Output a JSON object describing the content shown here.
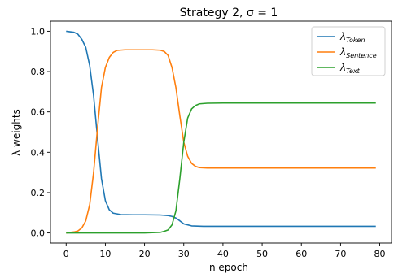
{
  "chart_data": {
    "type": "line",
    "title": "Strategy 2, σ = 1",
    "xlabel": "n epoch",
    "ylabel": "λ weights",
    "xlim": [
      -4,
      83
    ],
    "ylim": [
      -0.05,
      1.05
    ],
    "xticks": [
      0,
      10,
      20,
      30,
      40,
      50,
      60,
      70,
      80
    ],
    "yticks": [
      0.0,
      0.2,
      0.4,
      0.6,
      0.8,
      1.0
    ],
    "yticklabels": [
      "0.0",
      "0.2",
      "0.4",
      "0.6",
      "0.8",
      "1.0"
    ],
    "grid": false,
    "legend_position": "top-right",
    "series": [
      {
        "name_symbol": "λ",
        "name_sub": "Token",
        "color": "#1f77b4",
        "x": [
          0,
          2,
          3,
          4,
          5,
          6,
          7,
          8,
          9,
          10,
          11,
          12,
          14,
          17,
          20,
          24,
          26,
          27,
          28,
          29,
          30,
          32,
          35,
          40,
          79
        ],
        "y": [
          1.0,
          0.995,
          0.985,
          0.96,
          0.92,
          0.83,
          0.68,
          0.47,
          0.27,
          0.16,
          0.115,
          0.098,
          0.091,
          0.09,
          0.09,
          0.089,
          0.086,
          0.082,
          0.074,
          0.06,
          0.045,
          0.035,
          0.033,
          0.033,
          0.033
        ]
      },
      {
        "name_symbol": "λ",
        "name_sub": "Sentence",
        "color": "#ff7f0e",
        "x": [
          0,
          2,
          3,
          4,
          5,
          6,
          7,
          8,
          9,
          10,
          11,
          12,
          13,
          15,
          18,
          22,
          24,
          25,
          26,
          27,
          28,
          29,
          30,
          31,
          32,
          33,
          34,
          36,
          40,
          79
        ],
        "y": [
          0.0,
          0.005,
          0.01,
          0.025,
          0.06,
          0.14,
          0.3,
          0.52,
          0.72,
          0.82,
          0.87,
          0.895,
          0.905,
          0.908,
          0.908,
          0.908,
          0.906,
          0.9,
          0.88,
          0.82,
          0.72,
          0.58,
          0.45,
          0.38,
          0.345,
          0.33,
          0.324,
          0.322,
          0.322,
          0.322
        ]
      },
      {
        "name_symbol": "λ",
        "name_sub": "Text",
        "color": "#2ca02c",
        "x": [
          0,
          20,
          24,
          25,
          26,
          27,
          28,
          29,
          30,
          31,
          32,
          33,
          34,
          36,
          40,
          79
        ],
        "y": [
          0.0,
          0.0,
          0.003,
          0.008,
          0.015,
          0.04,
          0.11,
          0.27,
          0.45,
          0.57,
          0.615,
          0.632,
          0.64,
          0.643,
          0.644,
          0.644
        ]
      }
    ]
  }
}
